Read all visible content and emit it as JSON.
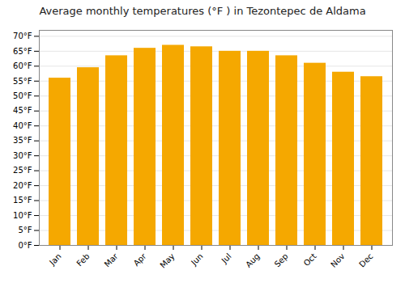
{
  "chart_data": {
    "type": "bar",
    "title": "Average monthly temperatures (°F ) in Tezontepec de Aldama",
    "categories": [
      "Jan",
      "Feb",
      "Mar",
      "Apr",
      "May",
      "Jun",
      "Jul",
      "Aug",
      "Sep",
      "Oct",
      "Nov",
      "Dec"
    ],
    "values": [
      56.0,
      59.5,
      63.5,
      66.0,
      67.0,
      66.5,
      65.0,
      65.0,
      63.5,
      61.0,
      58.0,
      56.5
    ],
    "color": "#F5A800",
    "ylim": [
      0,
      72
    ],
    "yticks": [
      {
        "value": 0,
        "label": "0°F"
      },
      {
        "value": 5,
        "label": "5°F"
      },
      {
        "value": 10,
        "label": "10°F"
      },
      {
        "value": 15,
        "label": "15°F"
      },
      {
        "value": 20,
        "label": "20°F"
      },
      {
        "value": 25,
        "label": "25°F"
      },
      {
        "value": 30,
        "label": "30°F"
      },
      {
        "value": 35,
        "label": "35°F"
      },
      {
        "value": 40,
        "label": "40°F"
      },
      {
        "value": 45,
        "label": "45°F"
      },
      {
        "value": 50,
        "label": "50°F"
      },
      {
        "value": 55,
        "label": "55°F"
      },
      {
        "value": 60,
        "label": "60°F"
      },
      {
        "value": 65,
        "label": "65°F"
      },
      {
        "value": 70,
        "label": "70°F"
      }
    ],
    "grid": true
  }
}
